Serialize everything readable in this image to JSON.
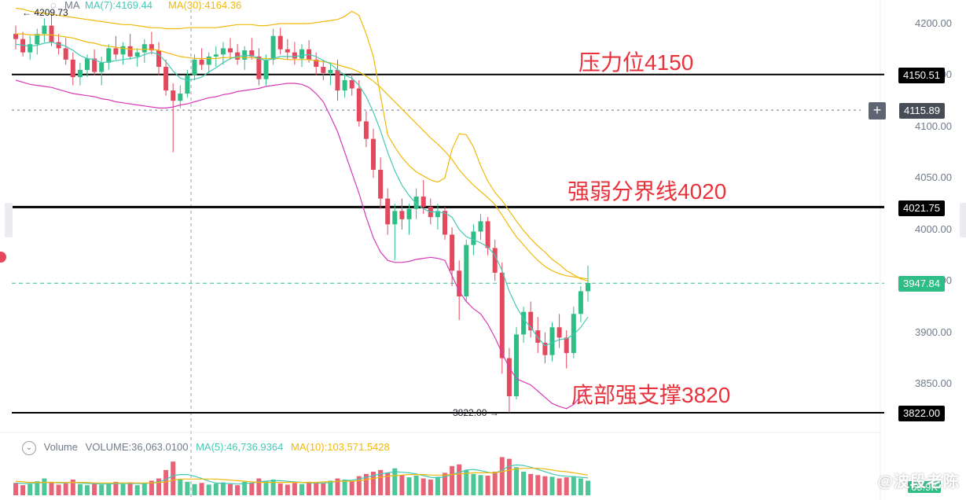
{
  "header": {
    "ma_indicator_label": "MA",
    "ma7_label": "MA(7):4169.44",
    "ma30_label": "MA(30):4164.36",
    "high_marker": "4209.73"
  },
  "volume_header": {
    "title": "Volume",
    "volume_value": "VOLUME:36,063.0100",
    "ma5": "MA(5):46,736.9364",
    "ma10": "MA(10):103,571.5428"
  },
  "annotations": {
    "resistance": "压力位4150",
    "divider": "强弱分界线4020",
    "support": "底部强支撑3820",
    "low_marker": "3822.00"
  },
  "price_tags": {
    "resistance": "4150.51",
    "crosshair": "4115.89",
    "divider": "4021.75",
    "current": "3947.84",
    "support": "3822.00"
  },
  "axis_ticks": [
    "4200.00",
    "4150.00",
    "4100.00",
    "4050.00",
    "4000.00",
    "3950.00",
    "3900.00",
    "3850.00"
  ],
  "volume_axis_value": "69.9K",
  "watermark": "@波段老陈",
  "colors": {
    "up": "#2ebd85",
    "down": "#e4485d",
    "ma7": "#45c9b5",
    "ma30": "#f0b90b",
    "bb_lower": "#d63ab8",
    "annotation": "#e8323c",
    "current_line": "#2ebd85"
  },
  "chart_data": {
    "type": "candlestick",
    "y_axis_range": [
      3815,
      4215
    ],
    "horizontal_levels": [
      4150.51,
      4021.75,
      3947.84,
      3822.0
    ],
    "crosshair_price": 4115.89,
    "candles": [
      [
        4190,
        4198,
        4175,
        4185
      ],
      [
        4185,
        4192,
        4168,
        4172
      ],
      [
        4172,
        4188,
        4165,
        4180
      ],
      [
        4180,
        4195,
        4170,
        4190
      ],
      [
        4190,
        4205,
        4182,
        4198
      ],
      [
        4198,
        4209,
        4178,
        4182
      ],
      [
        4182,
        4190,
        4170,
        4176
      ],
      [
        4176,
        4186,
        4160,
        4165
      ],
      [
        4165,
        4172,
        4140,
        4148
      ],
      [
        4148,
        4162,
        4140,
        4155
      ],
      [
        4155,
        4170,
        4148,
        4166
      ],
      [
        4166,
        4175,
        4150,
        4153
      ],
      [
        4153,
        4168,
        4140,
        4162
      ],
      [
        4162,
        4180,
        4155,
        4176
      ],
      [
        4176,
        4188,
        4165,
        4170
      ],
      [
        4170,
        4182,
        4160,
        4178
      ],
      [
        4178,
        4190,
        4165,
        4168
      ],
      [
        4168,
        4176,
        4158,
        4172
      ],
      [
        4172,
        4185,
        4162,
        4180
      ],
      [
        4180,
        4192,
        4170,
        4174
      ],
      [
        4174,
        4182,
        4150,
        4158
      ],
      [
        4158,
        4165,
        4130,
        4135
      ],
      [
        4135,
        4142,
        4075,
        4125
      ],
      [
        4125,
        4140,
        4118,
        4132
      ],
      [
        4132,
        4155,
        4128,
        4150
      ],
      [
        4150,
        4170,
        4145,
        4165
      ],
      [
        4165,
        4176,
        4155,
        4160
      ],
      [
        4160,
        4172,
        4152,
        4168
      ],
      [
        4168,
        4178,
        4158,
        4170
      ],
      [
        4170,
        4182,
        4160,
        4176
      ],
      [
        4176,
        4186,
        4165,
        4172
      ],
      [
        4172,
        4180,
        4160,
        4165
      ],
      [
        4165,
        4178,
        4155,
        4174
      ],
      [
        4174,
        4186,
        4165,
        4168
      ],
      [
        4168,
        4176,
        4140,
        4146
      ],
      [
        4146,
        4170,
        4140,
        4165
      ],
      [
        4165,
        4195,
        4160,
        4188
      ],
      [
        4188,
        4196,
        4170,
        4175
      ],
      [
        4175,
        4185,
        4165,
        4172
      ],
      [
        4172,
        4182,
        4160,
        4166
      ],
      [
        4166,
        4180,
        4158,
        4175
      ],
      [
        4175,
        4184,
        4162,
        4165
      ],
      [
        4165,
        4172,
        4150,
        4158
      ],
      [
        4158,
        4165,
        4145,
        4152
      ],
      [
        4152,
        4162,
        4140,
        4155
      ],
      [
        4155,
        4165,
        4125,
        4135
      ],
      [
        4135,
        4150,
        4128,
        4145
      ],
      [
        4145,
        4152,
        4130,
        4137
      ],
      [
        4137,
        4145,
        4100,
        4105
      ],
      [
        4105,
        4115,
        4080,
        4088
      ],
      [
        4088,
        4098,
        4050,
        4058
      ],
      [
        4058,
        4070,
        4020,
        4030
      ],
      [
        4030,
        4040,
        3995,
        4005
      ],
      [
        4005,
        4025,
        3970,
        4018
      ],
      [
        4018,
        4030,
        4000,
        4010
      ],
      [
        4010,
        4025,
        3995,
        4020
      ],
      [
        4020,
        4040,
        4010,
        4032
      ],
      [
        4032,
        4048,
        4015,
        4022
      ],
      [
        4022,
        4030,
        4005,
        4012
      ],
      [
        4012,
        4025,
        4000,
        4018
      ],
      [
        4018,
        4022,
        3990,
        3995
      ],
      [
        3995,
        4002,
        3945,
        3960
      ],
      [
        3960,
        3970,
        3912,
        3935
      ],
      [
        3935,
        3990,
        3930,
        3985
      ],
      [
        3985,
        4005,
        3975,
        3998
      ],
      [
        3998,
        4015,
        3990,
        4008
      ],
      [
        4008,
        4012,
        3975,
        3982
      ],
      [
        3982,
        3990,
        3950,
        3958
      ],
      [
        3958,
        3968,
        3860,
        3875
      ],
      [
        3875,
        3885,
        3822,
        3838
      ],
      [
        3838,
        3905,
        3835,
        3898
      ],
      [
        3898,
        3925,
        3890,
        3920
      ],
      [
        3920,
        3930,
        3895,
        3902
      ],
      [
        3902,
        3915,
        3880,
        3890
      ],
      [
        3890,
        3900,
        3870,
        3878
      ],
      [
        3878,
        3910,
        3872,
        3905
      ],
      [
        3905,
        3918,
        3885,
        3895
      ],
      [
        3895,
        3902,
        3865,
        3880
      ],
      [
        3880,
        3925,
        3875,
        3918
      ],
      [
        3918,
        3945,
        3910,
        3940
      ],
      [
        3940,
        3965,
        3930,
        3948
      ]
    ],
    "volume": [
      22,
      18,
      20,
      25,
      30,
      24,
      19,
      21,
      28,
      20,
      18,
      22,
      19,
      21,
      24,
      20,
      23,
      18,
      22,
      26,
      30,
      45,
      60,
      28,
      24,
      20,
      22,
      19,
      21,
      23,
      20,
      18,
      24,
      22,
      30,
      26,
      28,
      21,
      19,
      22,
      20,
      24,
      23,
      21,
      26,
      30,
      28,
      25,
      34,
      38,
      42,
      45,
      40,
      48,
      36,
      32,
      35,
      30,
      28,
      33,
      40,
      52,
      55,
      45,
      38,
      36,
      35,
      42,
      68,
      65,
      50,
      42,
      38,
      36,
      34,
      33,
      30,
      32,
      34,
      30,
      26
    ],
    "ma7": [
      4180,
      4179,
      4178,
      4179,
      4181,
      4182,
      4180,
      4178,
      4174,
      4169,
      4166,
      4165,
      4162,
      4163,
      4164,
      4165,
      4166,
      4167,
      4170,
      4172,
      4170,
      4163,
      4154,
      4147,
      4145,
      4146,
      4148,
      4153,
      4157,
      4162,
      4166,
      4168,
      4169,
      4169,
      4166,
      4164,
      4166,
      4168,
      4168,
      4168,
      4169,
      4170,
      4168,
      4164,
      4161,
      4155,
      4150,
      4147,
      4140,
      4129,
      4114,
      4096,
      4075,
      4057,
      4043,
      4033,
      4025,
      4020,
      4017,
      4017,
      4016,
      4012,
      4000,
      3993,
      3990,
      3987,
      3983,
      3975,
      3960,
      3940,
      3925,
      3913,
      3905,
      3895,
      3887,
      3890,
      3893,
      3894,
      3898,
      3905,
      3915
    ],
    "ma30": [
      4190,
      4190,
      4189,
      4189,
      4189,
      4189,
      4188,
      4187,
      4186,
      4184,
      4182,
      4181,
      4179,
      4178,
      4177,
      4176,
      4175,
      4175,
      4175,
      4175,
      4174,
      4172,
      4170,
      4168,
      4167,
      4166,
      4166,
      4166,
      4166,
      4167,
      4167,
      4167,
      4167,
      4167,
      4166,
      4166,
      4166,
      4166,
      4165,
      4165,
      4165,
      4165,
      4164,
      4163,
      4162,
      4160,
      4158,
      4156,
      4153,
      4149,
      4144,
      4138,
      4131,
      4124,
      4117,
      4110,
      4103,
      4096,
      4089,
      4083,
      4076,
      4068,
      4058,
      4050,
      4043,
      4037,
      4031,
      4024,
      4014,
      4003,
      3993,
      3985,
      3977,
      3970,
      3964,
      3960,
      3957,
      3955,
      3954,
      3953,
      3952
    ],
    "bb_upper": [
      4215,
      4214,
      4212,
      4211,
      4210,
      4209,
      4208,
      4207,
      4206,
      4205,
      4204,
      4203,
      4202,
      4201,
      4200,
      4199,
      4199,
      4198,
      4197,
      4196,
      4196,
      4195,
      4195,
      4195,
      4196,
      4196,
      4196,
      4196,
      4196,
      4197,
      4198,
      4199,
      4199,
      4199,
      4198,
      4198,
      4199,
      4200,
      4200,
      4200,
      4200,
      4200,
      4201,
      4202,
      4203,
      4204,
      4207,
      4212,
      4208,
      4190,
      4168,
      4130,
      4092,
      4080,
      4070,
      4062,
      4056,
      4052,
      4048,
      4046,
      4050,
      4078,
      4093,
      4092,
      4080,
      4062,
      4047,
      4036,
      4028,
      4018,
      4008,
      3999,
      3991,
      3984,
      3978,
      3971,
      3966,
      3960,
      3956,
      3952,
      3950
    ],
    "bb_lower": [
      4145,
      4143,
      4141,
      4140,
      4139,
      4138,
      4136,
      4134,
      4132,
      4131,
      4130,
      4129,
      4127,
      4126,
      4124,
      4123,
      4122,
      4121,
      4120,
      4119,
      4118,
      4118,
      4119,
      4121,
      4122,
      4124,
      4126,
      4128,
      4129,
      4131,
      4132,
      4134,
      4135,
      4136,
      4137,
      4139,
      4140,
      4141,
      4142,
      4142,
      4141,
      4138,
      4132,
      4124,
      4110,
      4095,
      4075,
      4055,
      4035,
      4012,
      3992,
      3978,
      3970,
      3968,
      3968,
      3969,
      3971,
      3972,
      3973,
      3972,
      3970,
      3955,
      3940,
      3930,
      3923,
      3918,
      3908,
      3895,
      3880,
      3866,
      3855,
      3852,
      3849,
      3843,
      3837,
      3831,
      3828,
      3826,
      3830,
      3838,
      3848
    ],
    "volume_ma5": [
      22,
      21,
      21,
      22,
      23,
      23,
      22,
      22,
      23,
      22,
      21,
      21,
      20,
      20,
      21,
      21,
      21,
      21,
      21,
      22,
      24,
      28,
      35,
      37,
      37,
      34,
      30,
      25,
      22,
      21,
      21,
      20,
      21,
      22,
      24,
      25,
      26,
      26,
      25,
      24,
      23,
      22,
      22,
      22,
      23,
      25,
      26,
      27,
      29,
      32,
      35,
      38,
      40,
      42,
      41,
      40,
      38,
      35,
      32,
      31,
      33,
      37,
      41,
      45,
      46,
      44,
      41,
      39,
      45,
      52,
      54,
      53,
      50,
      46,
      42,
      38,
      35,
      34,
      33,
      32,
      31
    ],
    "volume_ma10": [
      25,
      24,
      23,
      23,
      23,
      23,
      23,
      23,
      23,
      23,
      23,
      22,
      22,
      22,
      22,
      22,
      22,
      22,
      22,
      22,
      23,
      24,
      27,
      29,
      29,
      29,
      29,
      29,
      29,
      28,
      27,
      26,
      25,
      24,
      23,
      23,
      23,
      23,
      23,
      23,
      23,
      23,
      23,
      24,
      24,
      25,
      25,
      25,
      26,
      28,
      30,
      32,
      34,
      35,
      36,
      37,
      37,
      37,
      36,
      36,
      36,
      37,
      38,
      39,
      40,
      40,
      40,
      40,
      42,
      45,
      47,
      48,
      48,
      48,
      47,
      45,
      43,
      42,
      40,
      38,
      36
    ]
  }
}
